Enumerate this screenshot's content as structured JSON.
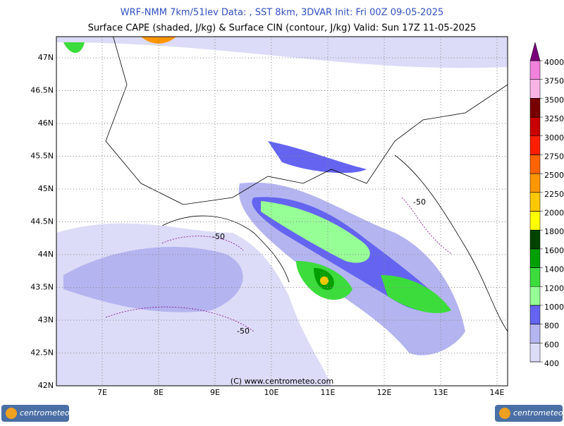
{
  "header": {
    "line1": "WRF-NMM 7km/51lev  Data: , SST 8km, 3DVAR  Init: Fri 00Z 09-05-2025",
    "line2": "Surface CAPE (shaded, J/kg) & Surface CIN (contour, J/kg)  Valid: Sun 17Z 11-05-2025"
  },
  "map": {
    "lat_ticks": [
      {
        "value": 47,
        "label": "47N"
      },
      {
        "value": 46.5,
        "label": "46.5N"
      },
      {
        "value": 46,
        "label": "46N"
      },
      {
        "value": 45.5,
        "label": "45.5N"
      },
      {
        "value": 45,
        "label": "45N"
      },
      {
        "value": 44.5,
        "label": "44.5N"
      },
      {
        "value": 44,
        "label": "44N"
      },
      {
        "value": 43.5,
        "label": "43.5N"
      },
      {
        "value": 43,
        "label": "43N"
      },
      {
        "value": 42.5,
        "label": "42.5N"
      },
      {
        "value": 42,
        "label": "42N"
      }
    ],
    "lon_ticks": [
      {
        "value": 7,
        "label": "7E"
      },
      {
        "value": 8,
        "label": "8E"
      },
      {
        "value": 9,
        "label": "9E"
      },
      {
        "value": 10,
        "label": "10E"
      },
      {
        "value": 11,
        "label": "11E"
      },
      {
        "value": 12,
        "label": "12E"
      },
      {
        "value": 13,
        "label": "13E"
      },
      {
        "value": 14,
        "label": "14E"
      }
    ],
    "contour_labels": [
      "-50",
      "-50",
      "-50"
    ],
    "copyright": "(C) www.centrometeo.com"
  },
  "colorbar": {
    "levels": [
      400,
      600,
      800,
      1000,
      1200,
      1400,
      1600,
      1800,
      2000,
      2250,
      2500,
      2750,
      3000,
      3250,
      3500,
      3750,
      4000
    ],
    "colors": [
      "#dcdcf8",
      "#b4b4f0",
      "#6464f0",
      "#96ff96",
      "#3cdc3c",
      "#00a000",
      "#004400",
      "#ffff00",
      "#ffc800",
      "#ff9600",
      "#ff6400",
      "#ff1e00",
      "#c80000",
      "#780000",
      "#ffb4e6",
      "#f082dc",
      "#b400b4"
    ],
    "top_color": "#780078"
  },
  "logos": {
    "left": "centrometeo",
    "right": "centrometeo"
  }
}
